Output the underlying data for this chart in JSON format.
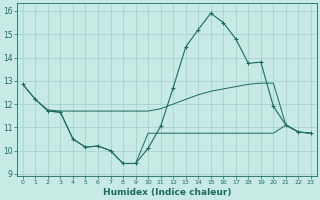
{
  "xlabel": "Humidex (Indice chaleur)",
  "bg_color": "#c8eae4",
  "grid_color": "#a0cec6",
  "line_color": "#1a6b5e",
  "xlim": [
    -0.5,
    23.5
  ],
  "ylim": [
    8.9,
    16.35
  ],
  "yticks": [
    9,
    10,
    11,
    12,
    13,
    14,
    15,
    16
  ],
  "xticks": [
    0,
    1,
    2,
    3,
    4,
    5,
    6,
    7,
    8,
    9,
    10,
    11,
    12,
    13,
    14,
    15,
    16,
    17,
    18,
    19,
    20,
    21,
    22,
    23
  ],
  "line1_x": [
    0,
    1,
    2,
    3,
    4,
    5,
    6,
    7,
    8,
    9,
    10,
    11,
    12,
    13,
    14,
    15,
    16,
    17,
    18,
    19,
    20,
    21,
    22,
    23
  ],
  "line1_y": [
    12.85,
    12.2,
    11.7,
    11.65,
    10.5,
    10.15,
    10.2,
    10.0,
    9.45,
    9.45,
    10.1,
    11.05,
    12.7,
    14.45,
    15.2,
    15.9,
    15.5,
    14.8,
    13.75,
    13.8,
    11.9,
    11.1,
    10.8,
    10.75
  ],
  "line2_x": [
    0,
    1,
    2,
    3,
    4,
    5,
    6,
    7,
    8,
    9,
    10,
    11,
    12,
    13,
    14,
    15,
    16,
    17,
    18,
    19,
    20,
    21,
    22,
    23
  ],
  "line2_y": [
    12.85,
    12.2,
    11.75,
    11.7,
    11.7,
    11.7,
    11.7,
    11.7,
    11.7,
    11.7,
    11.7,
    11.8,
    12.0,
    12.2,
    12.4,
    12.55,
    12.65,
    12.75,
    12.85,
    12.9,
    12.9,
    11.1,
    10.8,
    10.75
  ],
  "line3_x": [
    2,
    3,
    4,
    5,
    6,
    7,
    8,
    9,
    10,
    11,
    12,
    13,
    14,
    15,
    16,
    17,
    18,
    19,
    20,
    21,
    22,
    23
  ],
  "line3_y": [
    11.7,
    11.65,
    10.5,
    10.15,
    10.2,
    10.0,
    9.45,
    9.45,
    10.75,
    10.75,
    10.75,
    10.75,
    10.75,
    10.75,
    10.75,
    10.75,
    10.75,
    10.75,
    10.75,
    11.1,
    10.8,
    10.75
  ]
}
